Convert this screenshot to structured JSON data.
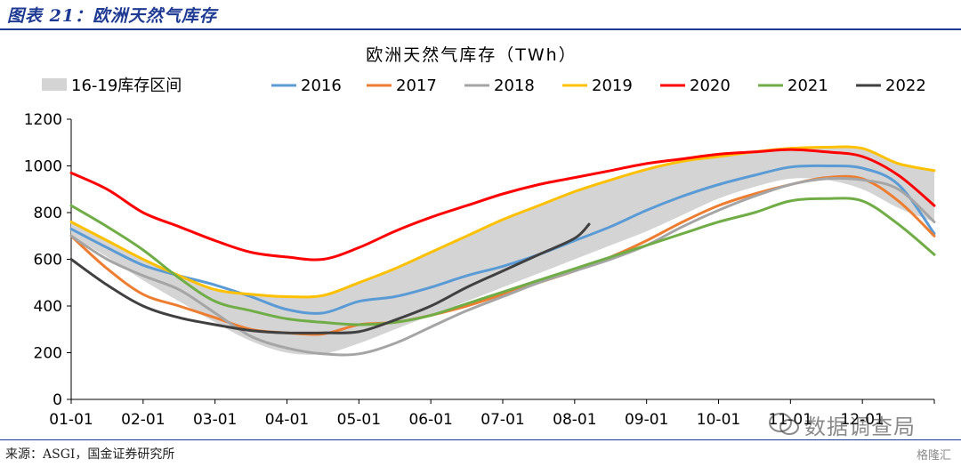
{
  "figure": {
    "header": "图表 21：欧洲天然气库存",
    "source": "来源：ASGI，国金证券研究所",
    "watermark": "数据调查局",
    "watermark_small": "格隆汇"
  },
  "colors": {
    "band": "#d4d4d4",
    "2016": "#5b9bd5",
    "2017": "#ed7d31",
    "2018": "#a5a5a5",
    "2019": "#ffc000",
    "2020": "#ff0000",
    "2021": "#70ad47",
    "2022": "#404040",
    "axis": "#000000"
  },
  "chart_data": {
    "type": "area",
    "title": "欧洲天然气库存（TWh）",
    "ylim": [
      0,
      1200
    ],
    "yticks": [
      0,
      200,
      400,
      600,
      800,
      1000,
      1200
    ],
    "categories": [
      "01-01",
      "02-01",
      "03-01",
      "04-01",
      "05-01",
      "06-01",
      "07-01",
      "08-01",
      "09-01",
      "10-01",
      "11-01",
      "12-01"
    ],
    "legend_position": "top",
    "band": {
      "name": "16-19库存区间",
      "x": [
        0,
        0.5,
        1,
        1.5,
        2,
        2.5,
        3,
        3.5,
        4,
        4.5,
        5,
        5.5,
        6,
        6.5,
        7,
        7.5,
        8,
        8.5,
        9,
        9.5,
        10,
        10.5,
        11,
        11.5,
        12
      ],
      "upper": [
        760,
        680,
        600,
        530,
        470,
        450,
        440,
        445,
        500,
        560,
        630,
        700,
        770,
        830,
        890,
        940,
        985,
        1020,
        1040,
        1060,
        1075,
        1075,
        1070,
        1010,
        980
      ],
      "lower": [
        700,
        610,
        510,
        420,
        330,
        250,
        200,
        195,
        240,
        300,
        360,
        420,
        480,
        540,
        600,
        660,
        720,
        790,
        860,
        910,
        945,
        940,
        900,
        820,
        760
      ]
    },
    "series": [
      {
        "name": "2016",
        "x": [
          0,
          0.5,
          1,
          1.5,
          2,
          2.5,
          3,
          3.5,
          4,
          4.5,
          5,
          5.5,
          6,
          6.5,
          7,
          7.5,
          8,
          8.5,
          9,
          9.5,
          10,
          10.5,
          11,
          11.5,
          12
        ],
        "values": [
          730,
          650,
          575,
          530,
          490,
          440,
          385,
          370,
          420,
          440,
          480,
          530,
          570,
          620,
          680,
          740,
          810,
          870,
          920,
          960,
          995,
          1000,
          990,
          920,
          710
        ]
      },
      {
        "name": "2017",
        "x": [
          0,
          0.5,
          1,
          1.5,
          2,
          2.5,
          3,
          3.5,
          4,
          4.5,
          5,
          5.5,
          6,
          6.5,
          7,
          7.5,
          8,
          8.5,
          9,
          9.5,
          10,
          10.5,
          11,
          11.5,
          12
        ],
        "values": [
          700,
          560,
          450,
          400,
          350,
          300,
          285,
          280,
          320,
          330,
          360,
          400,
          450,
          500,
          550,
          610,
          680,
          760,
          830,
          880,
          920,
          950,
          945,
          850,
          700
        ]
      },
      {
        "name": "2018",
        "x": [
          0,
          0.5,
          1,
          1.5,
          2,
          2.5,
          3,
          3.5,
          4,
          4.5,
          5,
          5.5,
          6,
          6.5,
          7,
          7.5,
          8,
          8.5,
          9,
          9.5,
          10,
          10.5,
          11,
          11.5,
          12
        ],
        "values": [
          700,
          600,
          530,
          470,
          370,
          270,
          220,
          195,
          195,
          240,
          310,
          380,
          440,
          500,
          550,
          600,
          660,
          740,
          810,
          870,
          920,
          945,
          940,
          900,
          760
        ]
      },
      {
        "name": "2019",
        "x": [
          0,
          0.5,
          1,
          1.5,
          2,
          2.5,
          3,
          3.5,
          4,
          4.5,
          5,
          5.5,
          6,
          6.5,
          7,
          7.5,
          8,
          8.5,
          9,
          9.5,
          10,
          10.5,
          11,
          11.5,
          12
        ],
        "values": [
          760,
          680,
          600,
          530,
          470,
          450,
          440,
          445,
          500,
          560,
          630,
          700,
          770,
          830,
          890,
          940,
          985,
          1020,
          1040,
          1060,
          1075,
          1080,
          1075,
          1010,
          980
        ]
      },
      {
        "name": "2020",
        "x": [
          0,
          0.5,
          1,
          1.5,
          2,
          2.5,
          3,
          3.5,
          4,
          4.5,
          5,
          5.5,
          6,
          6.5,
          7,
          7.5,
          8,
          8.5,
          9,
          9.5,
          10,
          10.5,
          11,
          11.5,
          12
        ],
        "values": [
          970,
          900,
          800,
          740,
          680,
          630,
          610,
          600,
          650,
          720,
          780,
          830,
          880,
          920,
          950,
          980,
          1010,
          1030,
          1050,
          1060,
          1070,
          1060,
          1040,
          960,
          830
        ]
      },
      {
        "name": "2021",
        "x": [
          0,
          0.5,
          1,
          1.5,
          2,
          2.5,
          3,
          3.5,
          4,
          4.5,
          5,
          5.5,
          6,
          6.5,
          7,
          7.5,
          8,
          8.5,
          9,
          9.5,
          10,
          10.5,
          11,
          11.5,
          12
        ],
        "values": [
          830,
          740,
          640,
          520,
          420,
          380,
          345,
          330,
          320,
          330,
          360,
          410,
          460,
          510,
          560,
          610,
          660,
          710,
          760,
          800,
          850,
          860,
          850,
          750,
          620
        ]
      },
      {
        "name": "2022",
        "x": [
          0,
          0.5,
          1,
          1.5,
          2,
          2.5,
          3,
          3.5,
          4,
          4.5,
          5,
          5.5,
          6,
          6.5,
          7,
          7.2
        ],
        "values": [
          600,
          490,
          400,
          350,
          320,
          295,
          285,
          285,
          290,
          340,
          400,
          480,
          550,
          620,
          690,
          750
        ]
      }
    ]
  }
}
